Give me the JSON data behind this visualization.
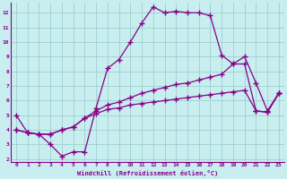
{
  "xlabel": "Windchill (Refroidissement éolien,°C)",
  "bg_color": "#c8eef0",
  "grid_color": "#9ecfcf",
  "line_color": "#880088",
  "xlim": [
    -0.5,
    23.5
  ],
  "ylim": [
    1.8,
    12.7
  ],
  "xticks": [
    0,
    1,
    2,
    3,
    4,
    5,
    6,
    7,
    8,
    9,
    10,
    11,
    12,
    13,
    14,
    15,
    16,
    17,
    18,
    19,
    20,
    21,
    22,
    23
  ],
  "yticks": [
    2,
    3,
    4,
    5,
    6,
    7,
    8,
    9,
    10,
    11,
    12
  ],
  "line1_x": [
    0,
    1,
    2,
    3,
    4,
    5,
    6,
    7,
    8,
    9,
    10,
    11,
    12,
    13,
    14,
    15,
    16,
    17,
    18,
    19,
    20,
    21,
    22,
    23
  ],
  "line1_y": [
    5.0,
    3.8,
    3.7,
    3.0,
    2.2,
    2.5,
    2.5,
    5.5,
    8.2,
    8.8,
    10.0,
    11.3,
    12.4,
    12.0,
    12.1,
    12.0,
    12.0,
    11.8,
    9.1,
    8.5,
    9.0,
    7.2,
    5.3,
    6.5
  ],
  "line2_x": [
    0,
    1,
    2,
    3,
    4,
    5,
    6,
    7,
    8,
    9,
    10,
    11,
    12,
    13,
    14,
    15,
    16,
    17,
    18,
    19,
    20,
    21,
    22,
    23
  ],
  "line2_y": [
    4.0,
    3.8,
    3.7,
    3.7,
    4.0,
    4.2,
    4.8,
    5.3,
    5.7,
    5.9,
    6.2,
    6.5,
    6.7,
    6.9,
    7.1,
    7.2,
    7.4,
    7.6,
    7.8,
    8.5,
    8.5,
    5.3,
    5.2,
    6.5
  ],
  "line3_x": [
    0,
    1,
    2,
    3,
    4,
    5,
    6,
    7,
    8,
    9,
    10,
    11,
    12,
    13,
    14,
    15,
    16,
    17,
    18,
    19,
    20,
    21,
    22,
    23
  ],
  "line3_y": [
    4.0,
    3.8,
    3.7,
    3.7,
    4.0,
    4.2,
    4.8,
    5.1,
    5.4,
    5.5,
    5.7,
    5.8,
    5.9,
    6.0,
    6.1,
    6.2,
    6.3,
    6.4,
    6.5,
    6.6,
    6.7,
    5.3,
    5.2,
    6.5
  ]
}
